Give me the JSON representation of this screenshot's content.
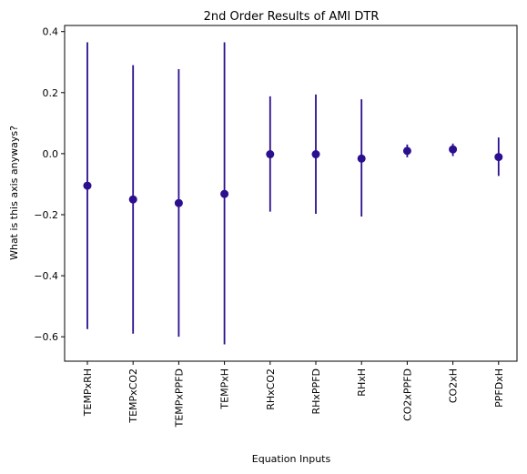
{
  "chart_data": {
    "type": "scatter",
    "title": "2nd Order Results of AMI DTR",
    "xlabel": "Equation Inputs",
    "ylabel": "What is this axis anyways?",
    "categories": [
      "TEMPxRH",
      "TEMPxCO2",
      "TEMPxPPFD",
      "TEMPxH",
      "RHxCO2",
      "RHxPPFD",
      "RHxH",
      "CO2xPPFD",
      "CO2xH",
      "PPFDxH"
    ],
    "values": [
      -0.105,
      -0.15,
      -0.162,
      -0.132,
      -0.002,
      -0.002,
      -0.016,
      0.009,
      0.014,
      -0.011
    ],
    "error_low": [
      -0.575,
      -0.59,
      -0.6,
      -0.625,
      -0.19,
      -0.197,
      -0.206,
      -0.012,
      -0.008,
      -0.073
    ],
    "error_high": [
      0.365,
      0.29,
      0.277,
      0.365,
      0.188,
      0.194,
      0.178,
      0.03,
      0.033,
      0.053
    ],
    "ylim": [
      -0.68,
      0.42
    ],
    "yticks": [
      -0.6,
      -0.4,
      -0.2,
      0.0,
      0.2,
      0.4
    ],
    "ytick_labels": [
      "−0.6",
      "−0.4",
      "−0.2",
      "0.0",
      "0.2",
      "0.4"
    ],
    "grid": false,
    "legend": "none",
    "color": "#2b0f8e"
  }
}
